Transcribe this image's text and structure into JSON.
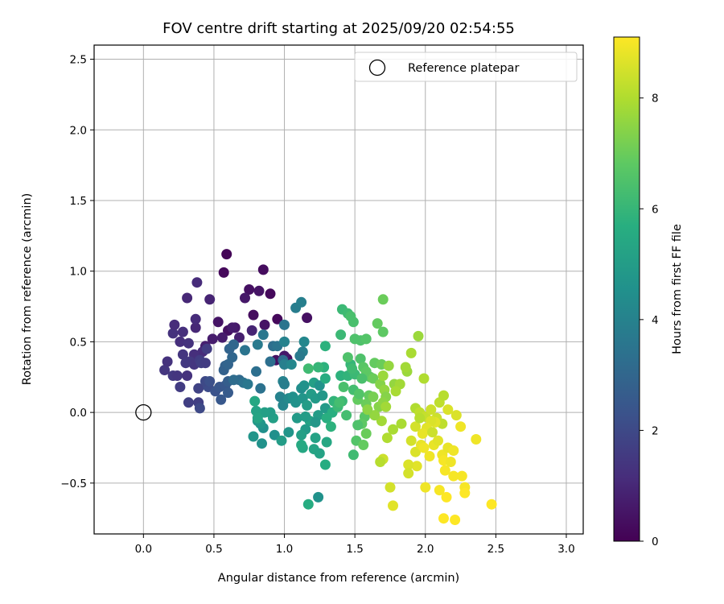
{
  "chart_data": {
    "type": "scatter",
    "title": "FOV centre drift starting at 2025/09/20 02:54:55",
    "xlabel": "Angular distance from reference (arcmin)",
    "ylabel": "Rotation from reference (arcmin)",
    "xlim": [
      -0.35,
      3.12
    ],
    "ylim": [
      -0.86,
      2.6
    ],
    "grid": true,
    "xticks": [
      0.0,
      0.5,
      1.0,
      1.5,
      2.0,
      2.5,
      3.0
    ],
    "xtick_labels": [
      "0.0",
      "0.5",
      "1.0",
      "1.5",
      "2.0",
      "2.5",
      "3.0"
    ],
    "yticks": [
      -0.5,
      0.0,
      0.5,
      1.0,
      1.5,
      2.0,
      2.5
    ],
    "ytick_labels": [
      "−0.5",
      "0.0",
      "0.5",
      "1.0",
      "1.5",
      "2.0",
      "2.5"
    ],
    "legend": {
      "label": "Reference platepar",
      "location": "upper right"
    },
    "reference_point": {
      "x": 0.0,
      "y": 0.0
    },
    "colorbar": {
      "label": "Hours from first FF file",
      "colormap": "viridis",
      "min": 0,
      "max": 9.1,
      "ticks": [
        0,
        2,
        4,
        6,
        8
      ],
      "tick_labels": [
        "0",
        "2",
        "4",
        "6",
        "8"
      ]
    },
    "points": [
      [
        0.59,
        1.12,
        0.1
      ],
      [
        0.57,
        0.99,
        0.2
      ],
      [
        0.85,
        1.01,
        0.3
      ],
      [
        0.75,
        0.87,
        0.4
      ],
      [
        0.82,
        0.86,
        0.5
      ],
      [
        0.9,
        0.84,
        0.2
      ],
      [
        0.72,
        0.81,
        0.6
      ],
      [
        0.78,
        0.69,
        0.3
      ],
      [
        0.95,
        0.66,
        0.2
      ],
      [
        0.86,
        0.62,
        0.5
      ],
      [
        0.53,
        0.64,
        0.5
      ],
      [
        0.65,
        0.6,
        0.6
      ],
      [
        0.6,
        0.58,
        0.4
      ],
      [
        0.56,
        0.53,
        0.7
      ],
      [
        0.49,
        0.52,
        0.7
      ],
      [
        0.44,
        0.47,
        0.8
      ],
      [
        0.77,
        0.58,
        0.9
      ],
      [
        0.68,
        0.53,
        0.8
      ],
      [
        1.16,
        0.67,
        0.4
      ],
      [
        1.02,
        0.38,
        0.3
      ],
      [
        1.0,
        0.4,
        0.6
      ],
      [
        0.94,
        0.37,
        0.4
      ],
      [
        0.63,
        0.6,
        0.7
      ],
      [
        0.38,
        0.92,
        1.1
      ],
      [
        0.31,
        0.81,
        1.0
      ],
      [
        0.47,
        0.8,
        0.9
      ],
      [
        0.26,
        0.5,
        1.2
      ],
      [
        0.21,
        0.56,
        1.3
      ],
      [
        0.28,
        0.57,
        1.2
      ],
      [
        0.37,
        0.6,
        1.0
      ],
      [
        0.37,
        0.66,
        1.1
      ],
      [
        0.22,
        0.62,
        1.1
      ],
      [
        0.32,
        0.49,
        1.3
      ],
      [
        0.42,
        0.43,
        1.1
      ],
      [
        0.36,
        0.41,
        1.2
      ],
      [
        0.28,
        0.41,
        1.4
      ],
      [
        0.15,
        0.3,
        1.4
      ],
      [
        0.17,
        0.36,
        1.3
      ],
      [
        0.21,
        0.26,
        1.5
      ],
      [
        0.24,
        0.26,
        1.4
      ],
      [
        0.31,
        0.26,
        1.3
      ],
      [
        0.33,
        0.36,
        1.5
      ],
      [
        0.36,
        0.34,
        1.4
      ],
      [
        0.4,
        0.37,
        1.6
      ],
      [
        0.41,
        0.35,
        1.7
      ],
      [
        0.45,
        0.45,
        1.6
      ],
      [
        0.44,
        0.35,
        1.6
      ],
      [
        0.3,
        0.35,
        1.5
      ],
      [
        0.26,
        0.18,
        1.6
      ],
      [
        0.32,
        0.07,
        1.7
      ],
      [
        0.39,
        0.17,
        1.8
      ],
      [
        0.39,
        0.07,
        1.7
      ],
      [
        0.4,
        0.03,
        2.0
      ],
      [
        0.46,
        0.18,
        2.1
      ],
      [
        0.44,
        0.22,
        2.0
      ],
      [
        0.47,
        0.22,
        2.2
      ],
      [
        0.51,
        0.15,
        2.3
      ],
      [
        0.55,
        0.09,
        2.5
      ],
      [
        0.54,
        0.18,
        2.4
      ],
      [
        0.58,
        0.19,
        2.5
      ],
      [
        0.6,
        0.14,
        2.6
      ],
      [
        0.6,
        0.22,
        2.7
      ],
      [
        0.57,
        0.3,
        2.8
      ],
      [
        0.58,
        0.33,
        2.8
      ],
      [
        0.6,
        0.34,
        2.9
      ],
      [
        0.63,
        0.39,
        3.0
      ],
      [
        0.61,
        0.45,
        2.9
      ],
      [
        0.64,
        0.48,
        3.0
      ],
      [
        0.68,
        0.23,
        3.1
      ],
      [
        0.64,
        0.23,
        3.2
      ],
      [
        0.71,
        0.21,
        3.4
      ],
      [
        0.72,
        0.44,
        3.5
      ],
      [
        0.74,
        0.2,
        3.6
      ],
      [
        0.8,
        0.29,
        3.3
      ],
      [
        0.83,
        0.17,
        3.4
      ],
      [
        0.9,
        0.36,
        3.3
      ],
      [
        0.92,
        0.47,
        3.3
      ],
      [
        0.95,
        0.47,
        3.5
      ],
      [
        0.99,
        0.37,
        3.2
      ],
      [
        0.85,
        0.55,
        3.6
      ],
      [
        0.81,
        0.48,
        3.7
      ],
      [
        1.0,
        0.62,
        3.5
      ],
      [
        1.08,
        0.74,
        3.8
      ],
      [
        1.12,
        0.78,
        3.9
      ],
      [
        1.13,
        0.43,
        3.9
      ],
      [
        1.11,
        0.4,
        3.7
      ],
      [
        1.14,
        0.5,
        4.2
      ],
      [
        1.0,
        0.5,
        4.0
      ],
      [
        1.0,
        0.34,
        3.9
      ],
      [
        1.05,
        0.34,
        4.2
      ],
      [
        0.99,
        0.22,
        4.0
      ],
      [
        1.0,
        0.2,
        3.8
      ],
      [
        0.97,
        0.11,
        4.0
      ],
      [
        0.99,
        0.05,
        4.1
      ],
      [
        1.03,
        0.1,
        4.3
      ],
      [
        1.06,
        0.11,
        4.5
      ],
      [
        1.08,
        0.07,
        4.6
      ],
      [
        1.12,
        0.17,
        4.4
      ],
      [
        1.14,
        0.19,
        4.6
      ],
      [
        1.13,
        0.1,
        4.7
      ],
      [
        1.09,
        -0.04,
        4.9
      ],
      [
        1.16,
        0.05,
        5.0
      ],
      [
        1.19,
        0.13,
        5.0
      ],
      [
        1.21,
        0.21,
        5.1
      ],
      [
        1.18,
        -0.06,
        5.2
      ],
      [
        1.24,
        -0.02,
        5.0
      ],
      [
        1.22,
        0.1,
        4.9
      ],
      [
        1.27,
        0.12,
        4.8
      ],
      [
        1.29,
        0.03,
        4.9
      ],
      [
        1.25,
        0.19,
        4.6
      ],
      [
        1.22,
        -0.18,
        5.2
      ],
      [
        1.21,
        -0.26,
        5.3
      ],
      [
        1.25,
        -0.29,
        5.2
      ],
      [
        1.22,
        -0.07,
        4.8
      ],
      [
        1.15,
        -0.03,
        5.0
      ],
      [
        1.15,
        -0.12,
        4.9
      ],
      [
        1.12,
        -0.16,
        5.1
      ],
      [
        1.13,
        -0.25,
        5.4
      ],
      [
        1.12,
        -0.23,
        5.5
      ],
      [
        1.03,
        -0.14,
        4.7
      ],
      [
        0.85,
        -0.11,
        4.5
      ],
      [
        0.83,
        -0.08,
        4.7
      ],
      [
        0.81,
        -0.06,
        4.8
      ],
      [
        0.78,
        -0.17,
        4.7
      ],
      [
        0.84,
        -0.22,
        4.6
      ],
      [
        0.93,
        -0.16,
        4.5
      ],
      [
        0.98,
        -0.2,
        5.0
      ],
      [
        0.92,
        -0.04,
        5.1
      ],
      [
        0.9,
        0.0,
        5.0
      ],
      [
        0.86,
        0.0,
        5.1
      ],
      [
        0.8,
        0.01,
        5.2
      ],
      [
        0.79,
        0.08,
        5.4
      ],
      [
        0.81,
        -0.04,
        5.3
      ],
      [
        1.24,
        -0.6,
        4.6
      ],
      [
        1.17,
        -0.65,
        5.6
      ],
      [
        1.29,
        -0.37,
        5.6
      ],
      [
        1.3,
        -0.21,
        5.4
      ],
      [
        1.3,
        -0.04,
        5.7
      ],
      [
        1.33,
        -0.1,
        5.8
      ],
      [
        1.34,
        0.0,
        5.7
      ],
      [
        1.35,
        0.08,
        5.9
      ],
      [
        1.29,
        0.24,
        5.6
      ],
      [
        1.28,
        0.32,
        5.8
      ],
      [
        1.24,
        0.32,
        6.0
      ],
      [
        1.29,
        0.47,
        5.8
      ],
      [
        1.4,
        0.26,
        5.8
      ],
      [
        1.45,
        0.26,
        5.9
      ],
      [
        1.47,
        0.34,
        6.0
      ],
      [
        1.5,
        0.27,
        6.1
      ],
      [
        1.48,
        0.31,
        6.2
      ],
      [
        1.4,
        0.55,
        6.1
      ],
      [
        1.41,
        0.73,
        6.1
      ],
      [
        1.45,
        0.7,
        6.2
      ],
      [
        1.47,
        0.68,
        6.4
      ],
      [
        1.49,
        0.64,
        6.4
      ],
      [
        1.5,
        0.52,
        6.5
      ],
      [
        1.54,
        0.51,
        6.5
      ],
      [
        1.58,
        0.52,
        6.6
      ],
      [
        1.45,
        0.39,
        6.5
      ],
      [
        1.54,
        0.38,
        6.5
      ],
      [
        1.56,
        0.32,
        6.7
      ],
      [
        1.58,
        0.29,
        6.8
      ],
      [
        1.61,
        0.25,
        6.8
      ],
      [
        1.64,
        0.35,
        6.9
      ],
      [
        1.69,
        0.34,
        7.0
      ],
      [
        1.66,
        0.63,
        6.9
      ],
      [
        1.7,
        0.57,
        6.8
      ],
      [
        1.7,
        0.8,
        7.0
      ],
      [
        1.6,
        0.12,
        6.9
      ],
      [
        1.58,
        0.06,
        7.0
      ],
      [
        1.57,
        -0.03,
        6.7
      ],
      [
        1.55,
        -0.08,
        6.8
      ],
      [
        1.52,
        -0.09,
        6.5
      ],
      [
        1.51,
        -0.2,
        6.6
      ],
      [
        1.56,
        -0.23,
        6.9
      ],
      [
        1.58,
        -0.15,
        7.0
      ],
      [
        1.49,
        -0.3,
        6.2
      ],
      [
        1.44,
        -0.02,
        6.3
      ],
      [
        1.38,
        0.04,
        6.1
      ],
      [
        1.41,
        0.08,
        6.1
      ],
      [
        1.42,
        0.18,
        6.4
      ],
      [
        1.17,
        0.31,
        6.2
      ],
      [
        1.39,
        0.07,
        6.3
      ],
      [
        1.49,
        0.16,
        6.3
      ],
      [
        1.52,
        0.09,
        6.9
      ],
      [
        1.53,
        0.13,
        6.6
      ],
      [
        1.55,
        0.24,
        6.4
      ],
      [
        1.63,
        0.24,
        7.0
      ],
      [
        1.63,
        0.11,
        7.2
      ],
      [
        1.68,
        0.2,
        7.4
      ],
      [
        1.71,
        0.16,
        7.6
      ],
      [
        1.72,
        0.11,
        7.4
      ],
      [
        1.67,
        0.04,
        7.4
      ],
      [
        1.7,
        0.07,
        7.5
      ],
      [
        1.72,
        0.04,
        7.8
      ],
      [
        1.78,
        0.2,
        7.6
      ],
      [
        1.82,
        0.2,
        7.8
      ],
      [
        1.79,
        0.15,
        7.9
      ],
      [
        1.74,
        0.33,
        7.6
      ],
      [
        1.7,
        0.26,
        7.7
      ],
      [
        1.87,
        0.29,
        7.7
      ],
      [
        1.86,
        0.32,
        7.8
      ],
      [
        1.9,
        0.42,
        7.9
      ],
      [
        1.95,
        0.54,
        7.7
      ],
      [
        1.93,
        0.03,
        8.0
      ],
      [
        1.99,
        0.24,
        8.0
      ],
      [
        1.96,
        0.0,
        8.2
      ],
      [
        2.0,
        -0.03,
        8.3
      ],
      [
        2.04,
        0.02,
        8.4
      ],
      [
        2.08,
        -0.04,
        8.4
      ],
      [
        2.12,
        -0.08,
        8.2
      ],
      [
        2.1,
        0.07,
        8.2
      ],
      [
        2.13,
        0.12,
        8.1
      ],
      [
        2.16,
        0.02,
        8.6
      ],
      [
        2.07,
        -0.07,
        8.7
      ],
      [
        2.04,
        -0.06,
        8.6
      ],
      [
        2.01,
        -0.11,
        8.7
      ],
      [
        1.98,
        -0.15,
        8.8
      ],
      [
        1.93,
        -0.1,
        8.5
      ],
      [
        1.9,
        -0.2,
        8.5
      ],
      [
        1.93,
        -0.28,
        8.6
      ],
      [
        1.97,
        -0.23,
        8.8
      ],
      [
        1.99,
        -0.25,
        8.9
      ],
      [
        2.03,
        -0.31,
        8.9
      ],
      [
        2.06,
        -0.23,
        8.8
      ],
      [
        2.09,
        -0.2,
        8.7
      ],
      [
        2.12,
        -0.3,
        8.9
      ],
      [
        2.13,
        -0.34,
        9.0
      ],
      [
        2.14,
        -0.41,
        9.0
      ],
      [
        2.16,
        -0.25,
        8.8
      ],
      [
        2.2,
        -0.27,
        8.9
      ],
      [
        2.25,
        -0.1,
        8.9
      ],
      [
        2.22,
        -0.02,
        8.6
      ],
      [
        2.36,
        -0.19,
        8.9
      ],
      [
        2.26,
        -0.45,
        9.0
      ],
      [
        2.28,
        -0.53,
        9.0
      ],
      [
        2.28,
        -0.57,
        9.1
      ],
      [
        2.2,
        -0.45,
        9.0
      ],
      [
        2.15,
        -0.6,
        9.1
      ],
      [
        2.13,
        -0.75,
        9.1
      ],
      [
        2.21,
        -0.76,
        9.1
      ],
      [
        2.1,
        -0.55,
        9.0
      ],
      [
        2.0,
        -0.53,
        8.9
      ],
      [
        1.94,
        -0.38,
        8.7
      ],
      [
        1.88,
        -0.37,
        8.6
      ],
      [
        1.88,
        -0.43,
        8.5
      ],
      [
        1.77,
        -0.66,
        8.7
      ],
      [
        1.75,
        -0.53,
        8.5
      ],
      [
        1.7,
        -0.33,
        8.4
      ],
      [
        1.68,
        -0.35,
        8.1
      ],
      [
        1.73,
        -0.18,
        8.0
      ],
      [
        1.77,
        -0.12,
        7.9
      ],
      [
        1.69,
        -0.06,
        7.8
      ],
      [
        1.64,
        -0.02,
        7.6
      ],
      [
        1.59,
        0.02,
        7.5
      ],
      [
        2.47,
        -0.65,
        9.1
      ],
      [
        1.83,
        -0.08,
        7.9
      ],
      [
        1.96,
        -0.04,
        8.1
      ],
      [
        2.05,
        -0.14,
        8.4
      ],
      [
        2.18,
        -0.35,
        8.9
      ]
    ]
  }
}
